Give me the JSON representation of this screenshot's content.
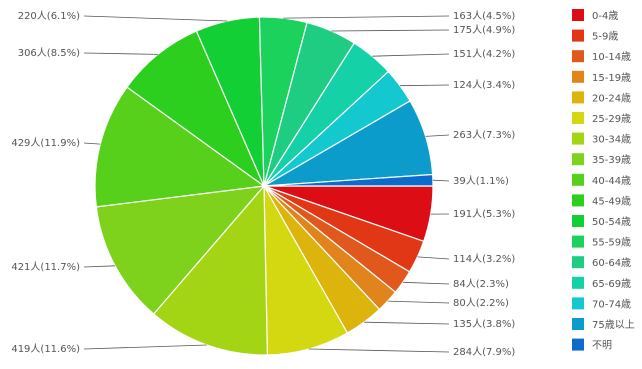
{
  "chart_data": {
    "type": "pie",
    "title": "",
    "legend_position": "right",
    "start_angle_deg": 90,
    "direction": "clockwise",
    "slices": [
      {
        "category": "0-4歳",
        "value": 191,
        "label": "191人(5.3%)",
        "color": "#dc0d14"
      },
      {
        "category": "5-9歳",
        "value": 114,
        "label": "114人(3.2%)",
        "color": "#e23715"
      },
      {
        "category": "10-14歳",
        "value": 84,
        "label": "84人(2.3%)",
        "color": "#e1581c"
      },
      {
        "category": "15-19歳",
        "value": 80,
        "label": "80人(2.2%)",
        "color": "#e1841c"
      },
      {
        "category": "20-24歳",
        "value": 135,
        "label": "135人(3.8%)",
        "color": "#dcb40c"
      },
      {
        "category": "25-29歳",
        "value": 284,
        "label": "284人(7.9%)",
        "color": "#d4d811"
      },
      {
        "category": "30-34歳",
        "value": 419,
        "label": "419人(11.6%)",
        "color": "#a4d514"
      },
      {
        "category": "35-39歳",
        "value": 421,
        "label": "421人(11.7%)",
        "color": "#7ed21b"
      },
      {
        "category": "40-44歳",
        "value": 429,
        "label": "429人(11.9%)",
        "color": "#57d01c"
      },
      {
        "category": "45-49歳",
        "value": 306,
        "label": "306人(8.5%)",
        "color": "#2ccf1e"
      },
      {
        "category": "50-54歳",
        "value": 220,
        "label": "220人(6.1%)",
        "color": "#12cf35"
      },
      {
        "category": "55-59歳",
        "value": 163,
        "label": "163人(4.5%)",
        "color": "#1bd25d"
      },
      {
        "category": "60-64歳",
        "value": 175,
        "label": "175人(4.9%)",
        "color": "#1ecd82"
      },
      {
        "category": "65-69歳",
        "value": 151,
        "label": "151人(4.2%)",
        "color": "#14d1a7"
      },
      {
        "category": "70-74歳",
        "value": 124,
        "label": "124人(3.4%)",
        "color": "#14c8d0"
      },
      {
        "category": "75歳以上",
        "value": 263,
        "label": "263人(7.3%)",
        "color": "#0c9ccc"
      },
      {
        "category": "不明",
        "value": 39,
        "label": "39人(1.1%)",
        "color": "#0c6ccc"
      }
    ]
  }
}
